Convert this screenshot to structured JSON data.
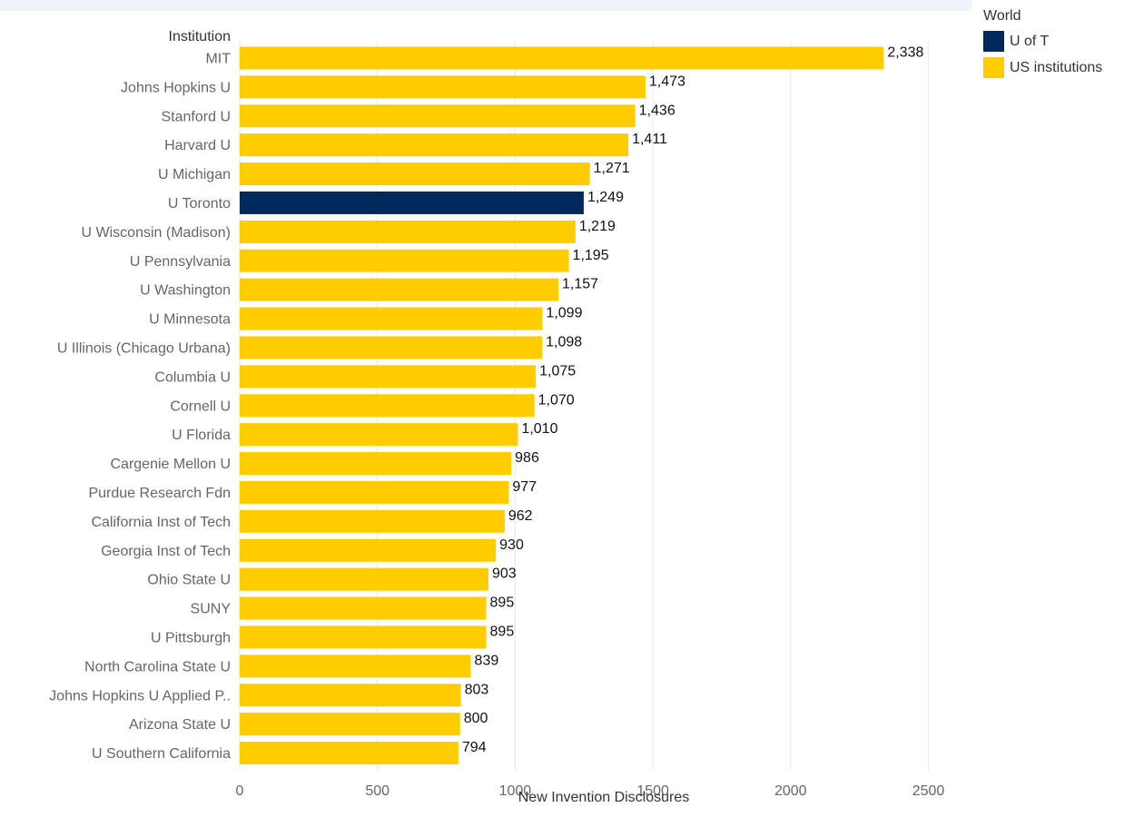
{
  "colors": {
    "highlight": "#002a5c",
    "default": "#ffcc00",
    "grid": "#e8e8e8",
    "tick_text": "#666666",
    "value_text": "#111111",
    "axis_title": "#333333"
  },
  "chart_data": {
    "type": "bar",
    "orientation": "horizontal",
    "row_header": "Institution",
    "xlabel": "New Invention Disclosures",
    "xlim": [
      0,
      2650
    ],
    "xticks": [
      0,
      500,
      1000,
      1500,
      2000,
      2500
    ],
    "grid": true,
    "legend_position": "top-right",
    "categories": [
      "MIT",
      "Johns Hopkins U",
      "Stanford U",
      "Harvard U",
      "U Michigan",
      "U Toronto",
      "U Wisconsin (Madison)",
      "U Pennsylvania",
      "U Washington",
      "U Minnesota",
      "U Illinois (Chicago Urbana)",
      "Columbia U",
      "Cornell U",
      "U Florida",
      "Cargenie Mellon U",
      "Purdue Research Fdn",
      "California Inst of Tech",
      "Georgia Inst of Tech",
      "Ohio State U",
      "SUNY",
      "U Pittsburgh",
      "North Carolina State U",
      "Johns Hopkins U Applied P..",
      "Arizona State U",
      "U Southern California"
    ],
    "values": [
      2338,
      1473,
      1436,
      1411,
      1271,
      1249,
      1219,
      1195,
      1157,
      1099,
      1098,
      1075,
      1070,
      1010,
      986,
      977,
      962,
      930,
      903,
      895,
      895,
      839,
      803,
      800,
      794
    ],
    "value_labels": [
      "2,338",
      "1,473",
      "1,436",
      "1,411",
      "1,271",
      "1,249",
      "1,219",
      "1,195",
      "1,157",
      "1,099",
      "1,098",
      "1,075",
      "1,070",
      "1,010",
      "986",
      "977",
      "962",
      "930",
      "903",
      "895",
      "895",
      "839",
      "803",
      "800",
      "794"
    ],
    "groups": [
      "US institutions",
      "US institutions",
      "US institutions",
      "US institutions",
      "US institutions",
      "U of T",
      "US institutions",
      "US institutions",
      "US institutions",
      "US institutions",
      "US institutions",
      "US institutions",
      "US institutions",
      "US institutions",
      "US institutions",
      "US institutions",
      "US institutions",
      "US institutions",
      "US institutions",
      "US institutions",
      "US institutions",
      "US institutions",
      "US institutions",
      "US institutions",
      "US institutions"
    ],
    "legend": {
      "title": "World",
      "items": [
        {
          "label": "U of T",
          "color": "#002a5c"
        },
        {
          "label": "US institutions",
          "color": "#ffcc00"
        }
      ]
    }
  }
}
